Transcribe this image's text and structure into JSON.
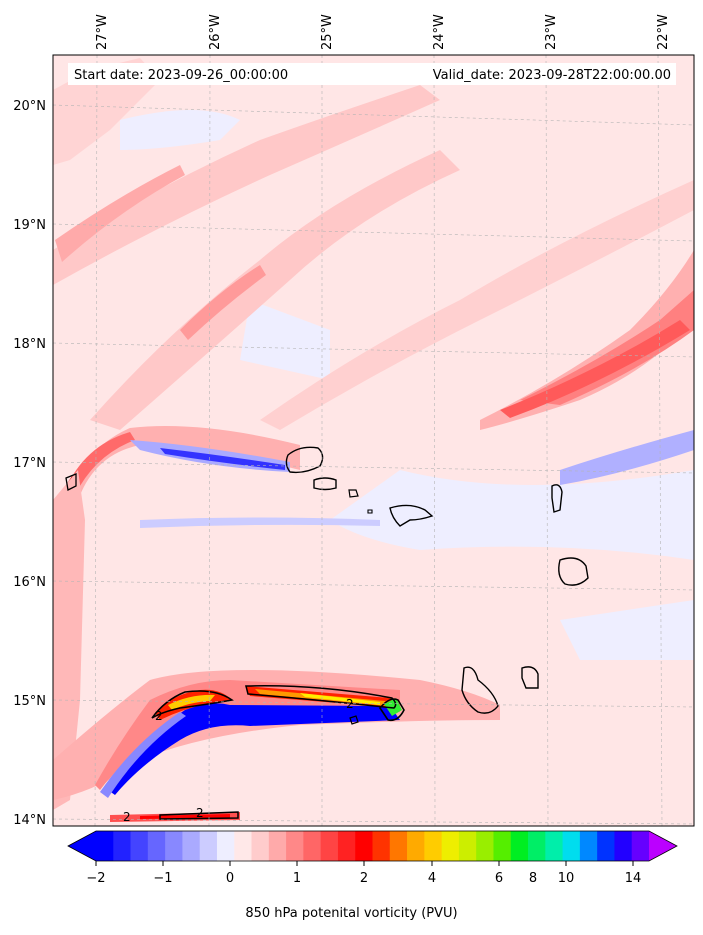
{
  "map": {
    "start_label": "Start date: 2023-09-26_00:00:00",
    "valid_label": "Valid_date: 2023-09-28T22:00:00.00",
    "lon_labels": [
      "27°W",
      "26°W",
      "25°W",
      "24°W",
      "23°W",
      "22°W"
    ],
    "lat_labels": [
      "20°N",
      "19°N",
      "18°N",
      "17°N",
      "16°N",
      "15°N",
      "14°N"
    ],
    "contour_labels": [
      "2",
      "2",
      "2",
      "2"
    ]
  },
  "colorbar": {
    "label": "850 hPa potenital vorticity (PVU)",
    "ticks": [
      "−2",
      "−1",
      "0",
      "1",
      "2",
      "4",
      "6",
      "8",
      "10",
      "14"
    ],
    "colors": [
      "#0000ff",
      "#2222ff",
      "#4444ff",
      "#6666ff",
      "#8888ff",
      "#aaaaff",
      "#ccccff",
      "#eeeeff",
      "#ffe8e8",
      "#ffcccc",
      "#ffaaaa",
      "#ff8888",
      "#ff6666",
      "#ff4444",
      "#ff2222",
      "#ff0000",
      "#ff3300",
      "#ff7700",
      "#ffaa00",
      "#ffcc00",
      "#eeee00",
      "#ccee00",
      "#99ee00",
      "#55ee00",
      "#00ee22",
      "#00ee66",
      "#00eeaa",
      "#00ddee",
      "#0088ff",
      "#0033ff",
      "#2200ff",
      "#6600ff"
    ],
    "extend_low_color": "#0000ff",
    "extend_high_color": "#bb00ff"
  },
  "palette": {
    "background": "#ffe6e6",
    "pink_light": "#ffc8c8",
    "pink_mid": "#ff9090",
    "red": "#ff3030",
    "blue_light": "#dcdcff",
    "blue_mid": "#8888ff",
    "blue_strong": "#0000ff",
    "orange": "#ff9900",
    "yellow": "#ffee00",
    "green": "#33ee33"
  }
}
